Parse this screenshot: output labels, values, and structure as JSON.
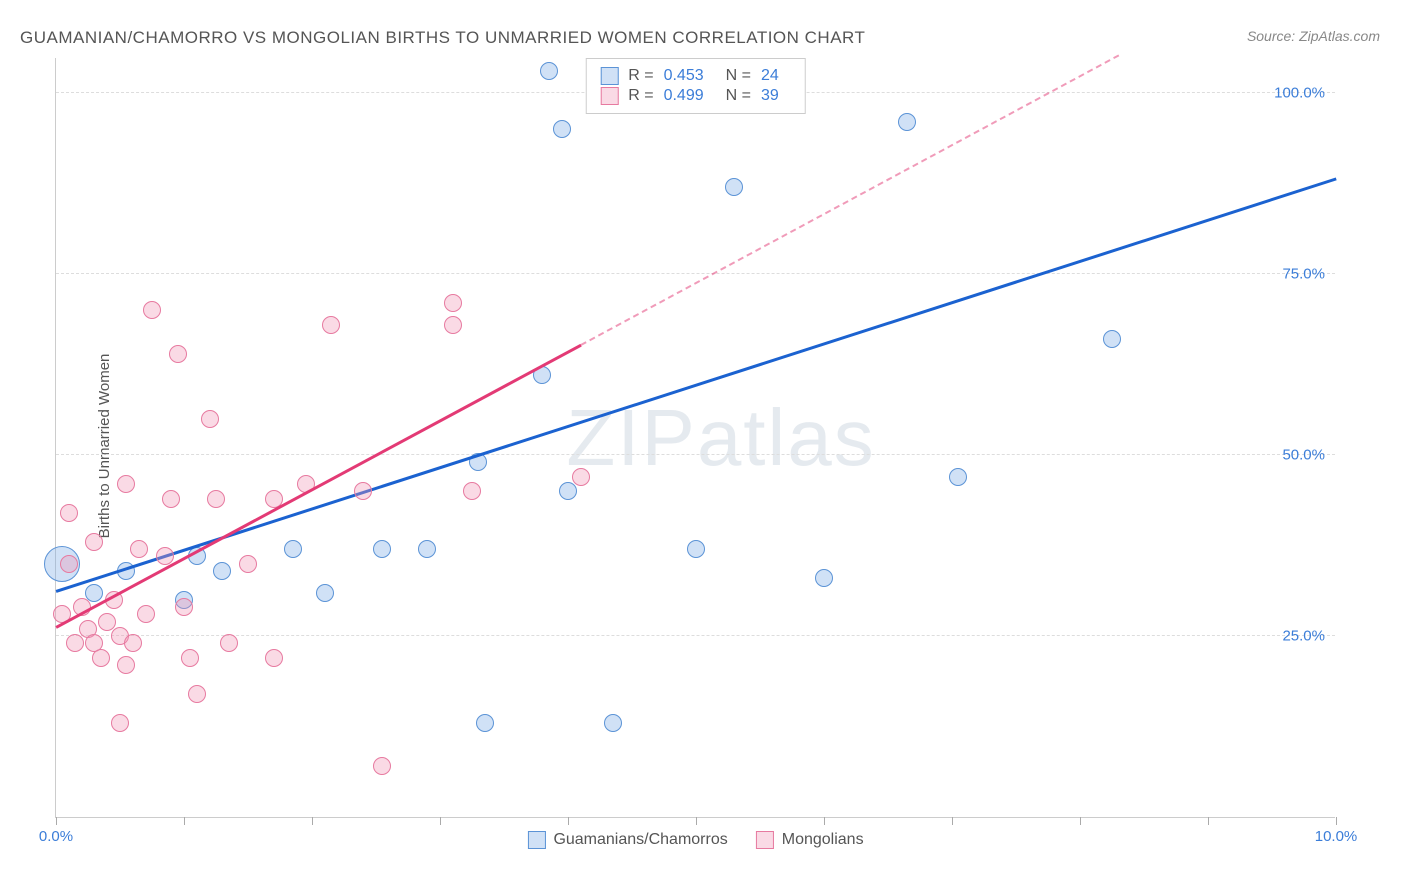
{
  "title": "GUAMANIAN/CHAMORRO VS MONGOLIAN BIRTHS TO UNMARRIED WOMEN CORRELATION CHART",
  "source": "Source: ZipAtlas.com",
  "ylabel": "Births to Unmarried Women",
  "watermark": "ZIPatlas",
  "chart": {
    "type": "scatter",
    "xlim": [
      0,
      10
    ],
    "ylim": [
      0,
      105
    ],
    "background_color": "#ffffff",
    "grid_color": "#dddddd",
    "grid_dash": true,
    "ytick_positions": [
      25,
      50,
      75,
      100
    ],
    "ytick_labels": [
      "25.0%",
      "50.0%",
      "75.0%",
      "100.0%"
    ],
    "xtick_positions": [
      0,
      1,
      2,
      3,
      4,
      5,
      6,
      7,
      8,
      9,
      10
    ],
    "x_show_labels": [
      0,
      10
    ],
    "xtick_labels": {
      "0": "0.0%",
      "10": "10.0%"
    },
    "ytick_color": "#3b7dd8",
    "xtick_color": "#3b7dd8",
    "series": [
      {
        "name": "Guamanians/Chamorros",
        "color_fill": "rgba(120,170,230,0.35)",
        "color_stroke": "#5b93d6",
        "regression_color": "#1b62d0",
        "regression_width": 2.5,
        "R": "0.453",
        "N": "24",
        "points": [
          {
            "x": 0.05,
            "y": 35,
            "r": 18
          },
          {
            "x": 0.3,
            "y": 31,
            "r": 9
          },
          {
            "x": 0.55,
            "y": 34,
            "r": 9
          },
          {
            "x": 1.0,
            "y": 30,
            "r": 9
          },
          {
            "x": 1.1,
            "y": 36,
            "r": 9
          },
          {
            "x": 1.3,
            "y": 34,
            "r": 9
          },
          {
            "x": 1.85,
            "y": 37,
            "r": 9
          },
          {
            "x": 2.1,
            "y": 31,
            "r": 9
          },
          {
            "x": 2.55,
            "y": 37,
            "r": 9
          },
          {
            "x": 2.9,
            "y": 37,
            "r": 9
          },
          {
            "x": 3.3,
            "y": 49,
            "r": 9
          },
          {
            "x": 3.35,
            "y": 13,
            "r": 9
          },
          {
            "x": 3.8,
            "y": 61,
            "r": 9
          },
          {
            "x": 3.85,
            "y": 103,
            "r": 9
          },
          {
            "x": 3.95,
            "y": 95,
            "r": 9
          },
          {
            "x": 4.0,
            "y": 45,
            "r": 9
          },
          {
            "x": 4.35,
            "y": 13,
            "r": 9
          },
          {
            "x": 5.0,
            "y": 37,
            "r": 9
          },
          {
            "x": 5.2,
            "y": 103,
            "r": 9
          },
          {
            "x": 5.3,
            "y": 87,
            "r": 9
          },
          {
            "x": 6.0,
            "y": 33,
            "r": 9
          },
          {
            "x": 6.65,
            "y": 96,
            "r": 9
          },
          {
            "x": 7.05,
            "y": 47,
            "r": 9
          },
          {
            "x": 8.25,
            "y": 66,
            "r": 9
          }
        ],
        "regression": {
          "x1": 0,
          "y1": 31,
          "x2": 10,
          "y2": 88
        },
        "regression_dashed": false
      },
      {
        "name": "Mongolians",
        "color_fill": "rgba(240,150,180,0.35)",
        "color_stroke": "#e77aa0",
        "regression_color": "#e33a75",
        "regression_width": 2.5,
        "R": "0.499",
        "N": "39",
        "points": [
          {
            "x": 0.05,
            "y": 28,
            "r": 9
          },
          {
            "x": 0.1,
            "y": 42,
            "r": 9
          },
          {
            "x": 0.1,
            "y": 35,
            "r": 9
          },
          {
            "x": 0.15,
            "y": 24,
            "r": 9
          },
          {
            "x": 0.2,
            "y": 29,
            "r": 9
          },
          {
            "x": 0.25,
            "y": 26,
            "r": 9
          },
          {
            "x": 0.3,
            "y": 24,
            "r": 9
          },
          {
            "x": 0.3,
            "y": 38,
            "r": 9
          },
          {
            "x": 0.35,
            "y": 22,
            "r": 9
          },
          {
            "x": 0.4,
            "y": 27,
            "r": 9
          },
          {
            "x": 0.45,
            "y": 30,
            "r": 9
          },
          {
            "x": 0.5,
            "y": 25,
            "r": 9
          },
          {
            "x": 0.5,
            "y": 13,
            "r": 9
          },
          {
            "x": 0.55,
            "y": 21,
            "r": 9
          },
          {
            "x": 0.55,
            "y": 46,
            "r": 9
          },
          {
            "x": 0.6,
            "y": 24,
            "r": 9
          },
          {
            "x": 0.65,
            "y": 37,
            "r": 9
          },
          {
            "x": 0.7,
            "y": 28,
            "r": 9
          },
          {
            "x": 0.75,
            "y": 70,
            "r": 9
          },
          {
            "x": 0.85,
            "y": 36,
            "r": 9
          },
          {
            "x": 0.9,
            "y": 44,
            "r": 9
          },
          {
            "x": 0.95,
            "y": 64,
            "r": 9
          },
          {
            "x": 1.0,
            "y": 29,
            "r": 9
          },
          {
            "x": 1.05,
            "y": 22,
            "r": 9
          },
          {
            "x": 1.1,
            "y": 17,
            "r": 9
          },
          {
            "x": 1.2,
            "y": 55,
            "r": 9
          },
          {
            "x": 1.25,
            "y": 44,
            "r": 9
          },
          {
            "x": 1.35,
            "y": 24,
            "r": 9
          },
          {
            "x": 1.5,
            "y": 35,
            "r": 9
          },
          {
            "x": 1.7,
            "y": 22,
            "r": 9
          },
          {
            "x": 1.7,
            "y": 44,
            "r": 9
          },
          {
            "x": 1.95,
            "y": 46,
            "r": 9
          },
          {
            "x": 2.15,
            "y": 68,
            "r": 9
          },
          {
            "x": 2.4,
            "y": 45,
            "r": 9
          },
          {
            "x": 2.55,
            "y": 7,
            "r": 9
          },
          {
            "x": 3.1,
            "y": 71,
            "r": 9
          },
          {
            "x": 3.1,
            "y": 68,
            "r": 9
          },
          {
            "x": 3.25,
            "y": 45,
            "r": 9
          },
          {
            "x": 4.1,
            "y": 47,
            "r": 9
          }
        ],
        "regression": {
          "x1": 0,
          "y1": 26,
          "x2": 4.1,
          "y2": 65
        },
        "regression_extrapolate": {
          "x1": 4.1,
          "y1": 65,
          "x2": 8.3,
          "y2": 105
        },
        "regression_dashed": false,
        "extrapolate_dashed": true
      }
    ]
  },
  "legend_top": [
    {
      "swatch_fill": "rgba(120,170,230,0.35)",
      "swatch_stroke": "#5b93d6",
      "R_label": "R =",
      "R": "0.453",
      "N_label": "N =",
      "N": "24"
    },
    {
      "swatch_fill": "rgba(240,150,180,0.35)",
      "swatch_stroke": "#e77aa0",
      "R_label": "R =",
      "R": "0.499",
      "N_label": "N =",
      "N": "39"
    }
  ],
  "legend_bottom": [
    {
      "swatch_fill": "rgba(120,170,230,0.35)",
      "swatch_stroke": "#5b93d6",
      "label": "Guamanians/Chamorros"
    },
    {
      "swatch_fill": "rgba(240,150,180,0.35)",
      "swatch_stroke": "#e77aa0",
      "label": "Mongolians"
    }
  ]
}
